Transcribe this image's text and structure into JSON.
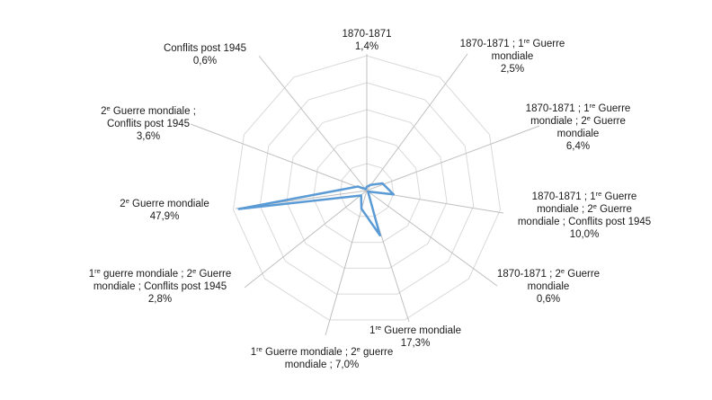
{
  "colors": {
    "series": "#5b9bd5",
    "grid": "#d9d9d9",
    "spoke": "#bfbfbf",
    "text": "#1a1a1a"
  },
  "chart_data": {
    "type": "radar",
    "categories": [
      "1870-1871",
      "1870-1871 ; 1re Guerre mondiale",
      "1870-1871 ; 1re Guerre mondiale ; 2e Guerre mondiale",
      "1870-1871 ; 1re Guerre mondiale ; 2e Guerre mondiale ; Conflits post 1945",
      "1870-1871 ; 2e Guerre mondiale",
      "1re Guerre mondiale",
      "1re Guerre mondiale ; 2e guerre mondiale",
      "1re guerre mondiale ; 2e Guerre mondiale ; Conflits post 1945",
      "2e Guerre mondiale",
      "2e Guerre mondiale ; Conflits post 1945",
      "Conflits post 1945"
    ],
    "values": [
      1.4,
      2.5,
      6.4,
      10.0,
      0.6,
      17.3,
      7.0,
      2.8,
      47.9,
      3.6,
      0.6
    ],
    "value_labels": [
      "1,4%",
      "2,5%",
      "6,4%",
      "10,0%",
      "0,6%",
      "17,3%",
      "7,0%",
      "2,8%",
      "47,9%",
      "3,6%",
      "0,6%"
    ],
    "label_lines": [
      [
        [
          "1870-1871"
        ]
      ],
      [
        [
          "1870-1871 ; 1",
          "re",
          " Guerre"
        ],
        [
          "mondiale"
        ]
      ],
      [
        [
          "1870-1871 ; 1",
          "re",
          " Guerre"
        ],
        [
          "mondiale ; 2",
          "e",
          " Guerre"
        ],
        [
          "mondiale"
        ]
      ],
      [
        [
          "1870-1871 ; 1",
          "re",
          " Guerre"
        ],
        [
          "mondiale ; 2",
          "e",
          " Guerre"
        ],
        [
          "mondiale ; Conflits post 1945"
        ]
      ],
      [
        [
          "1870-1871 ; 2",
          "e",
          " Guerre"
        ],
        [
          "mondiale"
        ]
      ],
      [
        [
          "1",
          "re",
          " Guerre mondiale"
        ]
      ],
      [
        [
          "1",
          "re",
          " Guerre mondiale ; 2",
          "e",
          " guerre"
        ],
        [
          "mondiale ; 7,0%"
        ]
      ],
      [
        [
          "1",
          "re",
          " guerre mondiale ; 2",
          "e",
          " Guerre"
        ],
        [
          "mondiale ; Conflits post 1945"
        ]
      ],
      [
        [
          "2",
          "e",
          " Guerre mondiale"
        ]
      ],
      [
        [
          "2",
          "e",
          " Guerre mondiale ;"
        ],
        [
          "Conflits post 1945"
        ]
      ],
      [
        [
          "Conflits post 1945"
        ]
      ]
    ],
    "label_value_inline": [
      false,
      false,
      false,
      false,
      false,
      false,
      true,
      false,
      false,
      false,
      false
    ],
    "rmax": 50,
    "grid_levels": 5,
    "grid": true,
    "legend": "none"
  }
}
